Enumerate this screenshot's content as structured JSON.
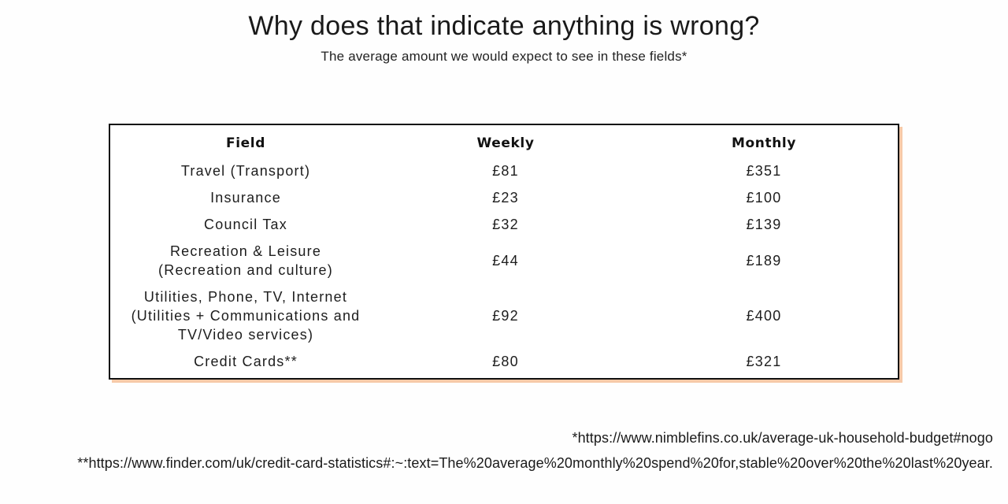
{
  "header": {
    "title": "Why does that indicate anything is wrong?",
    "subtitle": "The average amount we would expect to see in these fields*"
  },
  "table": {
    "columns": [
      "Field",
      "Weekly",
      "Monthly"
    ],
    "rows": [
      {
        "field": [
          "Travel (Transport)"
        ],
        "weekly": "£81",
        "monthly": "£351"
      },
      {
        "field": [
          "Insurance"
        ],
        "weekly": "£23",
        "monthly": "£100"
      },
      {
        "field": [
          "Council Tax"
        ],
        "weekly": "£32",
        "monthly": "£139"
      },
      {
        "field": [
          "Recreation & Leisure",
          "(Recreation and culture)"
        ],
        "weekly": "£44",
        "monthly": "£189"
      },
      {
        "field": [
          "Utilities, Phone, TV, Internet",
          "(Utilities + Communications and",
          "TV/Video services)"
        ],
        "weekly": "£92",
        "monthly": "£400"
      },
      {
        "field": [
          "Credit Cards**"
        ],
        "weekly": "£80",
        "monthly": "£321"
      }
    ]
  },
  "footnotes": {
    "note1": "*https://www.nimblefins.co.uk/average-uk-household-budget#nogo",
    "note2": "**https://www.finder.com/uk/credit-card-statistics#:~:text=The%20average%20monthly%20spend%20for,stable%20over%20the%20last%20year."
  },
  "colors": {
    "shadow_accent": "#f6c9a8",
    "border": "#111111"
  }
}
